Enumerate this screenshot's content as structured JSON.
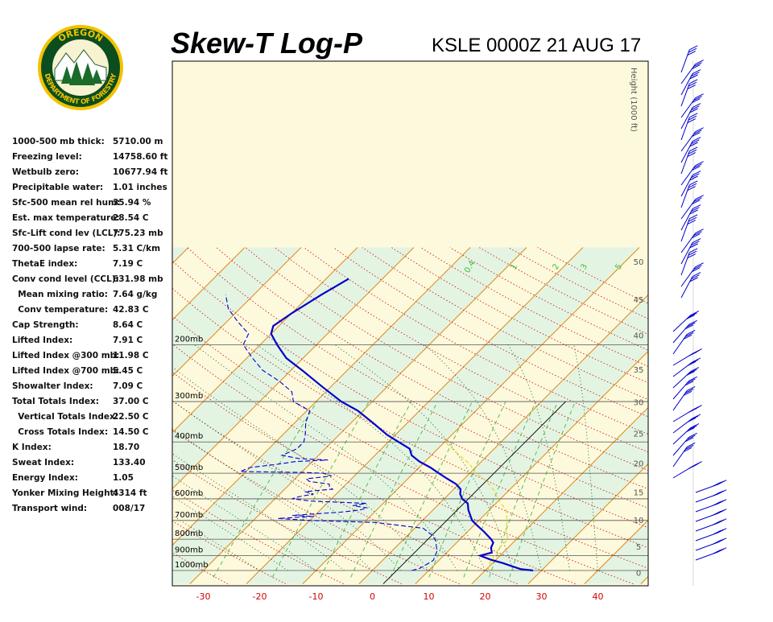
{
  "header": {
    "title": "Skew-T Log-P",
    "station": "KSLE 0000Z 21 AUG 17"
  },
  "logo": {
    "top_text": "OREGON",
    "bottom_text": "DEPARTMENT OF FORESTRY",
    "colors": {
      "green": "#2e7d32",
      "gold": "#f2c200",
      "dark": "#0b4d1f"
    }
  },
  "indices": [
    {
      "label": "1000-500 mb thick:",
      "value": "5710.00 m"
    },
    {
      "label": "Freezing level:",
      "value": "14758.60 ft"
    },
    {
      "label": "Wetbulb zero:",
      "value": "10677.94 ft"
    },
    {
      "label": "Precipitable water:",
      "value": "1.01 inches"
    },
    {
      "label": "Sfc-500 mean rel hum:",
      "value": "35.94 %"
    },
    {
      "label": "Est. max temperature:",
      "value": "28.54 C"
    },
    {
      "label": "Sfc-Lift cond lev (LCL):",
      "value": "775.23 mb"
    },
    {
      "label": "700-500 lapse rate:",
      "value": "5.31 C/km"
    },
    {
      "label": "ThetaE index:",
      "value": "7.19 C"
    },
    {
      "label": "Conv cond level (CCL):",
      "value": "631.98 mb"
    },
    {
      "label": "  Mean mixing ratio:",
      "value": "7.64 g/kg"
    },
    {
      "label": "  Conv temperature:",
      "value": "42.83 C"
    },
    {
      "label": "Cap Strength:",
      "value": "8.64 C"
    },
    {
      "label": "Lifted Index:",
      "value": "7.91 C"
    },
    {
      "label": "Lifted Index @300 mb:",
      "value": "11.98 C"
    },
    {
      "label": "Lifted Index @700 mb:",
      "value": "5.45 C"
    },
    {
      "label": "Showalter Index:",
      "value": "7.09 C"
    },
    {
      "label": "Total Totals Index:",
      "value": "37.00 C"
    },
    {
      "label": "  Vertical Totals Index:",
      "value": "22.50 C"
    },
    {
      "label": "  Cross Totals Index:",
      "value": "14.50 C"
    },
    {
      "label": "K Index:",
      "value": "18.70"
    },
    {
      "label": "Sweat Index:",
      "value": "133.40"
    },
    {
      "label": "Energy Index:",
      "value": "1.05"
    },
    {
      "label": "Yonker Mixing Height:",
      "value": "4314 ft"
    },
    {
      "label": "Transport wind:",
      "value": "008/17"
    }
  ],
  "chart_data": {
    "type": "line",
    "diagram": "skew-t log-p",
    "xlim": [
      -35,
      45
    ],
    "ylim": [
      1025,
      120
    ],
    "x_ticks": [
      -30,
      -20,
      -10,
      0,
      10,
      20,
      30,
      40
    ],
    "pressure_labels": [
      {
        "p": 1000,
        "label": "1000mb"
      },
      {
        "p": 900,
        "label": "900mb"
      },
      {
        "p": 800,
        "label": "800mb"
      },
      {
        "p": 700,
        "label": "700mb"
      },
      {
        "p": 600,
        "label": "600mb"
      },
      {
        "p": 500,
        "label": "500mb"
      },
      {
        "p": 400,
        "label": "400mb"
      },
      {
        "p": 300,
        "label": "300mb"
      },
      {
        "p": 200,
        "label": "200mb"
      }
    ],
    "height_axis": {
      "title": "Height (1000 ft)",
      "ticks": [
        {
          "kft": 0,
          "label": "0"
        },
        {
          "kft": 5,
          "label": "5"
        },
        {
          "kft": 10,
          "label": "10"
        },
        {
          "kft": 15,
          "label": "15"
        },
        {
          "kft": 20,
          "label": "20"
        },
        {
          "kft": 25,
          "label": "25"
        },
        {
          "kft": 30,
          "label": "30"
        },
        {
          "kft": 35,
          "label": "35"
        },
        {
          "kft": 40,
          "label": "40"
        },
        {
          "kft": 45,
          "label": "45"
        },
        {
          "kft": 50,
          "label": "50"
        }
      ]
    },
    "mixing_ratio_labels": [
      "0.4",
      "1",
      "2",
      "3",
      "5"
    ],
    "series": [
      {
        "kind": "temperature",
        "color": "#0000cc",
        "p": [
          1000,
          990,
          970,
          950,
          925,
          900,
          880,
          850,
          820,
          800,
          760,
          720,
          700,
          650,
          620,
          600,
          580,
          560,
          540,
          520,
          500,
          480,
          460,
          440,
          420,
          400,
          380,
          350,
          320,
          300,
          270,
          240,
          220,
          200,
          185,
          175,
          160,
          140,
          125
        ],
        "t": [
          28.5,
          26,
          24,
          22,
          19,
          16.5,
          18,
          17,
          16.5,
          15.5,
          13,
          10.2,
          8.8,
          6.3,
          5,
          3.2,
          2,
          1.2,
          -0.5,
          -3,
          -5.5,
          -8,
          -11,
          -13.5,
          -15,
          -18.2,
          -21.5,
          -26,
          -31,
          -35.5,
          -41.5,
          -48,
          -53,
          -57,
          -60,
          -61,
          -60,
          -58,
          -56
        ]
      },
      {
        "kind": "dewpoint",
        "color": "#0000cc",
        "p": [
          1000,
          985,
          960,
          930,
          900,
          870,
          840,
          810,
          780,
          740,
          710,
          700,
          690,
          680,
          675,
          660,
          650,
          640,
          630,
          620,
          610,
          600,
          590,
          580,
          570,
          560,
          550,
          540,
          530,
          520,
          510,
          500,
          497,
          494,
          480,
          470,
          460,
          455,
          450,
          440,
          420,
          400,
          380,
          350,
          320,
          300,
          280,
          260,
          240,
          220,
          200,
          185,
          170,
          155,
          140
        ],
        "t": [
          7,
          8,
          8.5,
          9,
          8.5,
          8,
          7,
          6,
          4.5,
          1.5,
          -8,
          -20,
          -26,
          -20,
          -24,
          -16,
          -13,
          -12,
          -15,
          -13,
          -23,
          -27,
          -26,
          -24,
          -26,
          -21.5,
          -22.5,
          -23,
          -27,
          -28,
          -24,
          -26,
          -30,
          -41,
          -40,
          -36,
          -33,
          -27.5,
          -33,
          -36.5,
          -35,
          -35,
          -36,
          -38,
          -39.5,
          -44,
          -46,
          -50,
          -55,
          -59,
          -63,
          -64,
          -68,
          -72,
          -75
        ]
      }
    ]
  }
}
